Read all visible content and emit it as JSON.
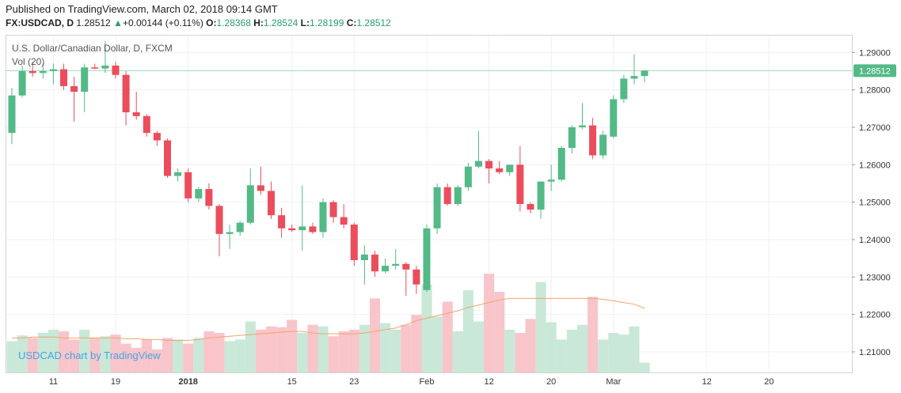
{
  "header": {
    "published_line": "Published on TradingView.com, March 02, 2018 09:14 GMT",
    "symbol": "FX:USDCAD, D",
    "last": "1.28512",
    "change_arrow": "▲",
    "change": "+0.00144 (+0.11%)",
    "o_label": "O:",
    "o_value": "1.28368",
    "h_label": "H:",
    "h_value": "1.28524",
    "l_label": "L:",
    "l_value": "1.28199",
    "c_label": "C:",
    "c_value": "1.28512"
  },
  "legend": {
    "title": "U.S. Dollar/Canadian Dollar, D, FXCM",
    "vol": "Vol (20)"
  },
  "watermark": "USDCAD chart by TradingView",
  "price_tag": "1.28512",
  "colors": {
    "up": "#53b987",
    "down": "#eb4d5c",
    "vol_up": "#c9e8d8",
    "vol_down": "#f8c5ca",
    "vol_ma": "#f3a46b",
    "grid": "#eef0f3",
    "last_line": "#9ed8bd"
  },
  "chart_data": {
    "type": "candlestick",
    "title": "U.S. Dollar/Canadian Dollar, D, FXCM",
    "y_range": [
      1.2045,
      1.2945
    ],
    "y_ticks": [
      "1.29000",
      "1.28000",
      "1.27000",
      "1.26000",
      "1.25000",
      "1.24000",
      "1.23000",
      "1.22000",
      "1.21000"
    ],
    "y_tick_values": [
      1.29,
      1.28,
      1.27,
      1.26,
      1.25,
      1.24,
      1.23,
      1.22,
      1.21
    ],
    "x_ticks": [
      {
        "label": "11",
        "index": 4
      },
      {
        "label": "19",
        "index": 10
      },
      {
        "label": "2018",
        "index": 17
      },
      {
        "label": "15",
        "index": 27
      },
      {
        "label": "23",
        "index": 33
      },
      {
        "label": "Feb",
        "index": 40
      },
      {
        "label": "12",
        "index": 46
      },
      {
        "label": "20",
        "index": 52
      },
      {
        "label": "Mar",
        "index": 58
      },
      {
        "label": "12",
        "index": 67
      },
      {
        "label": "20",
        "index": 73
      }
    ],
    "last_price": 1.28512,
    "volume_label": "Vol (20)",
    "volume_ma_label": "Vol (20)",
    "candles": [
      {
        "o": 1.2685,
        "h": 1.2805,
        "l": 1.2655,
        "c": 1.2785
      },
      {
        "o": 1.2785,
        "h": 1.2865,
        "l": 1.278,
        "c": 1.285
      },
      {
        "o": 1.285,
        "h": 1.2875,
        "l": 1.2835,
        "c": 1.2845
      },
      {
        "o": 1.2845,
        "h": 1.287,
        "l": 1.283,
        "c": 1.285
      },
      {
        "o": 1.285,
        "h": 1.287,
        "l": 1.2815,
        "c": 1.2855
      },
      {
        "o": 1.2855,
        "h": 1.287,
        "l": 1.28,
        "c": 1.281
      },
      {
        "o": 1.281,
        "h": 1.2835,
        "l": 1.2715,
        "c": 1.2795
      },
      {
        "o": 1.2795,
        "h": 1.287,
        "l": 1.274,
        "c": 1.286
      },
      {
        "o": 1.286,
        "h": 1.287,
        "l": 1.2855,
        "c": 1.2857
      },
      {
        "o": 1.2857,
        "h": 1.293,
        "l": 1.2845,
        "c": 1.2865
      },
      {
        "o": 1.2865,
        "h": 1.2875,
        "l": 1.283,
        "c": 1.284
      },
      {
        "o": 1.284,
        "h": 1.285,
        "l": 1.2705,
        "c": 1.274
      },
      {
        "o": 1.274,
        "h": 1.2795,
        "l": 1.272,
        "c": 1.273
      },
      {
        "o": 1.273,
        "h": 1.2735,
        "l": 1.2675,
        "c": 1.2685
      },
      {
        "o": 1.2685,
        "h": 1.269,
        "l": 1.265,
        "c": 1.2665
      },
      {
        "o": 1.2665,
        "h": 1.267,
        "l": 1.2565,
        "c": 1.257
      },
      {
        "o": 1.257,
        "h": 1.259,
        "l": 1.2555,
        "c": 1.258
      },
      {
        "o": 1.258,
        "h": 1.259,
        "l": 1.25,
        "c": 1.251
      },
      {
        "o": 1.251,
        "h": 1.254,
        "l": 1.25,
        "c": 1.2535
      },
      {
        "o": 1.2535,
        "h": 1.255,
        "l": 1.248,
        "c": 1.249
      },
      {
        "o": 1.249,
        "h": 1.2495,
        "l": 1.2355,
        "c": 1.2415
      },
      {
        "o": 1.2415,
        "h": 1.244,
        "l": 1.2375,
        "c": 1.242
      },
      {
        "o": 1.242,
        "h": 1.245,
        "l": 1.241,
        "c": 1.2445
      },
      {
        "o": 1.2445,
        "h": 1.259,
        "l": 1.244,
        "c": 1.2545
      },
      {
        "o": 1.2545,
        "h": 1.2595,
        "l": 1.252,
        "c": 1.253
      },
      {
        "o": 1.253,
        "h": 1.2555,
        "l": 1.2455,
        "c": 1.2465
      },
      {
        "o": 1.2465,
        "h": 1.2485,
        "l": 1.2405,
        "c": 1.243
      },
      {
        "o": 1.243,
        "h": 1.244,
        "l": 1.242,
        "c": 1.2425
      },
      {
        "o": 1.2425,
        "h": 1.2545,
        "l": 1.237,
        "c": 1.2435
      },
      {
        "o": 1.2435,
        "h": 1.2445,
        "l": 1.2415,
        "c": 1.242
      },
      {
        "o": 1.242,
        "h": 1.251,
        "l": 1.2405,
        "c": 1.25
      },
      {
        "o": 1.25,
        "h": 1.2505,
        "l": 1.2445,
        "c": 1.246
      },
      {
        "o": 1.246,
        "h": 1.2495,
        "l": 1.243,
        "c": 1.244
      },
      {
        "o": 1.244,
        "h": 1.2445,
        "l": 1.233,
        "c": 1.2345
      },
      {
        "o": 1.2345,
        "h": 1.2385,
        "l": 1.228,
        "c": 1.236
      },
      {
        "o": 1.236,
        "h": 1.237,
        "l": 1.23,
        "c": 1.2315
      },
      {
        "o": 1.2315,
        "h": 1.235,
        "l": 1.231,
        "c": 1.233
      },
      {
        "o": 1.233,
        "h": 1.2375,
        "l": 1.232,
        "c": 1.2335
      },
      {
        "o": 1.2335,
        "h": 1.234,
        "l": 1.225,
        "c": 1.232
      },
      {
        "o": 1.232,
        "h": 1.233,
        "l": 1.2255,
        "c": 1.228
      },
      {
        "o": 1.2265,
        "h": 1.244,
        "l": 1.226,
        "c": 1.243
      },
      {
        "o": 1.243,
        "h": 1.255,
        "l": 1.2415,
        "c": 1.254
      },
      {
        "o": 1.254,
        "h": 1.255,
        "l": 1.249,
        "c": 1.2495
      },
      {
        "o": 1.2495,
        "h": 1.2545,
        "l": 1.249,
        "c": 1.254
      },
      {
        "o": 1.254,
        "h": 1.2605,
        "l": 1.253,
        "c": 1.2595
      },
      {
        "o": 1.2595,
        "h": 1.269,
        "l": 1.259,
        "c": 1.261
      },
      {
        "o": 1.261,
        "h": 1.2615,
        "l": 1.255,
        "c": 1.259
      },
      {
        "o": 1.259,
        "h": 1.261,
        "l": 1.2575,
        "c": 1.258
      },
      {
        "o": 1.258,
        "h": 1.26,
        "l": 1.257,
        "c": 1.26
      },
      {
        "o": 1.26,
        "h": 1.265,
        "l": 1.2475,
        "c": 1.2495
      },
      {
        "o": 1.2495,
        "h": 1.25,
        "l": 1.247,
        "c": 1.248
      },
      {
        "o": 1.248,
        "h": 1.2555,
        "l": 1.2455,
        "c": 1.2555
      },
      {
        "o": 1.2555,
        "h": 1.26,
        "l": 1.253,
        "c": 1.256
      },
      {
        "o": 1.256,
        "h": 1.265,
        "l": 1.2555,
        "c": 1.2645
      },
      {
        "o": 1.2645,
        "h": 1.2705,
        "l": 1.263,
        "c": 1.27
      },
      {
        "o": 1.27,
        "h": 1.2765,
        "l": 1.2695,
        "c": 1.2705
      },
      {
        "o": 1.2705,
        "h": 1.2725,
        "l": 1.2615,
        "c": 1.2625
      },
      {
        "o": 1.2625,
        "h": 1.269,
        "l": 1.2615,
        "c": 1.268
      },
      {
        "o": 1.2675,
        "h": 1.2785,
        "l": 1.267,
        "c": 1.2775
      },
      {
        "o": 1.2775,
        "h": 1.284,
        "l": 1.2765,
        "c": 1.283
      },
      {
        "o": 1.283,
        "h": 1.2895,
        "l": 1.2815,
        "c": 1.2837
      },
      {
        "o": 1.2837,
        "h": 1.28524,
        "l": 1.28199,
        "c": 1.28512
      }
    ],
    "volume_ma": [
      0.42,
      0.42,
      0.43,
      0.43,
      0.43,
      0.42,
      0.42,
      0.42,
      0.42,
      0.42,
      0.42,
      0.41,
      0.41,
      0.4,
      0.4,
      0.39,
      0.39,
      0.39,
      0.4,
      0.42,
      0.43,
      0.44,
      0.45,
      0.46,
      0.47,
      0.48,
      0.49,
      0.5,
      0.5,
      0.48,
      0.47,
      0.47,
      0.47,
      0.47,
      0.48,
      0.5,
      0.52,
      0.54,
      0.58,
      0.63,
      0.66,
      0.69,
      0.72,
      0.75,
      0.79,
      0.82,
      0.85,
      0.88,
      0.9,
      0.9,
      0.9,
      0.9,
      0.9,
      0.9,
      0.9,
      0.9,
      0.9,
      0.89,
      0.87,
      0.85,
      0.83,
      0.78
    ],
    "volume": [
      0.38,
      0.45,
      0.42,
      0.48,
      0.52,
      0.5,
      0.4,
      0.52,
      0.42,
      0.44,
      0.46,
      0.35,
      0.3,
      0.4,
      0.28,
      0.42,
      0.4,
      0.35,
      0.42,
      0.5,
      0.48,
      0.38,
      0.4,
      0.62,
      0.52,
      0.56,
      0.55,
      0.64,
      0.48,
      0.58,
      0.56,
      0.44,
      0.5,
      0.52,
      0.58,
      0.9,
      0.6,
      0.52,
      0.58,
      0.7,
      1.07,
      0.68,
      0.86,
      0.5,
      1.0,
      0.62,
      1.2,
      0.98,
      0.52,
      0.48,
      0.65,
      1.1,
      0.61,
      0.4,
      0.52,
      0.58,
      0.92,
      0.4,
      0.48,
      0.46,
      0.56,
      0.12
    ],
    "volume_scale_max": 1.25
  }
}
